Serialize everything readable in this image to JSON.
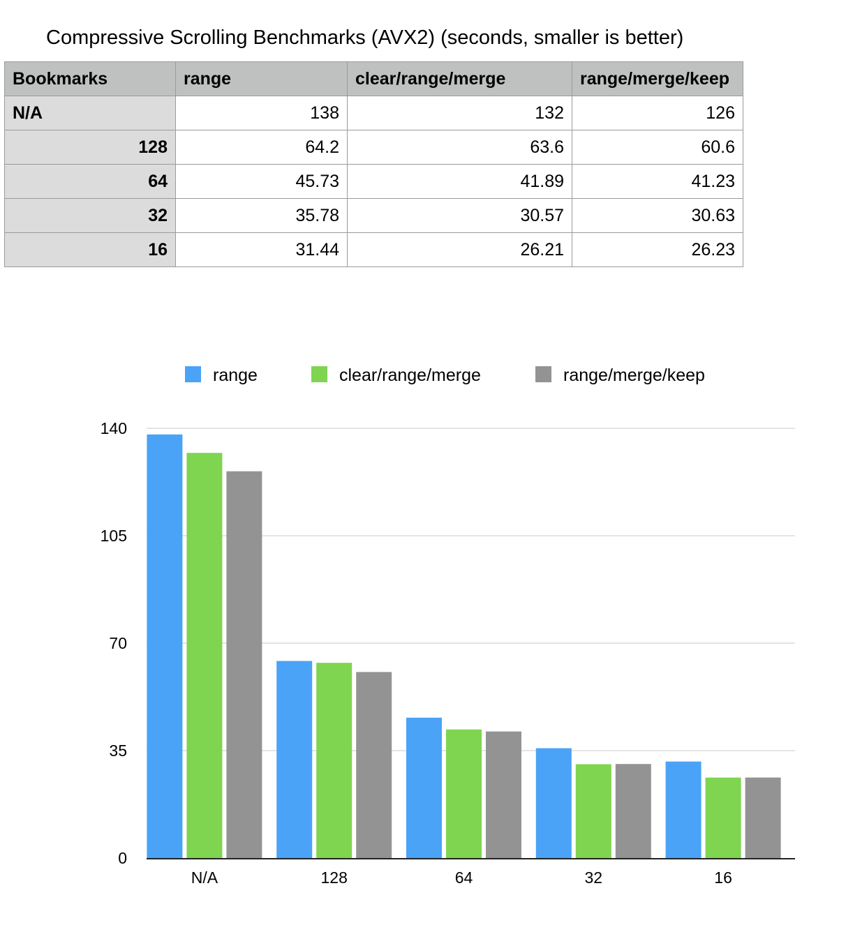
{
  "title": "Compressive Scrolling Benchmarks (AVX2) (seconds, smaller is better)",
  "table": {
    "headers": [
      "Bookmarks",
      "range",
      "clear/range/merge",
      "range/merge/keep"
    ],
    "rows": [
      [
        "N/A",
        "138",
        "132",
        "126"
      ],
      [
        "128",
        "64.2",
        "63.6",
        "60.6"
      ],
      [
        "64",
        "45.73",
        "41.89",
        "41.23"
      ],
      [
        "32",
        "35.78",
        "30.57",
        "30.63"
      ],
      [
        "16",
        "31.44",
        "26.21",
        "26.23"
      ]
    ]
  },
  "chart_data": {
    "type": "bar",
    "categories": [
      "N/A",
      "128",
      "64",
      "32",
      "16"
    ],
    "series": [
      {
        "name": "range",
        "color": "#4aa3f6",
        "values": [
          138,
          64.2,
          45.73,
          35.78,
          31.44
        ]
      },
      {
        "name": "clear/range/merge",
        "color": "#7fd450",
        "values": [
          132,
          63.6,
          41.89,
          30.57,
          26.21
        ]
      },
      {
        "name": "range/merge/keep",
        "color": "#939393",
        "values": [
          126,
          60.6,
          41.23,
          30.63,
          26.23
        ]
      }
    ],
    "ylim": [
      0,
      140
    ],
    "yticks": [
      "0",
      "35",
      "70",
      "105",
      "140"
    ],
    "grid": true,
    "legend": "top"
  }
}
